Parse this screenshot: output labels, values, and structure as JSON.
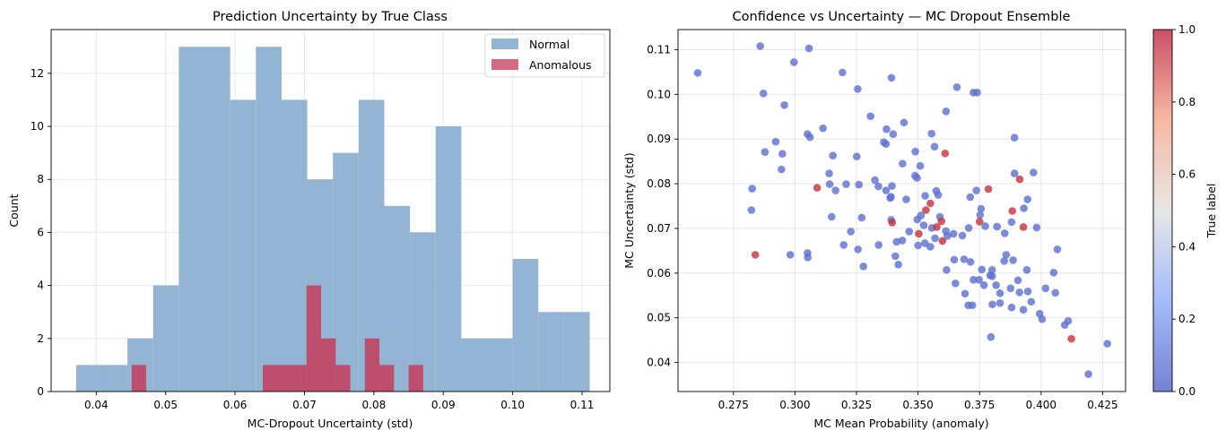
{
  "left_chart": {
    "title": "Prediction Uncertainty by True Class",
    "xlabel": "MC-Dropout Uncertainty (std)",
    "ylabel": "Count",
    "xticks": [
      "0.04",
      "0.05",
      "0.06",
      "0.07",
      "0.08",
      "0.09",
      "0.10",
      "0.11"
    ],
    "yticks": [
      "0",
      "2",
      "4",
      "6",
      "8",
      "10",
      "12"
    ],
    "legend": [
      "Normal",
      "Anomalous"
    ]
  },
  "right_chart": {
    "title": "Confidence vs Uncertainty — MC Dropout Ensemble",
    "xlabel": "MC Mean Probability (anomaly)",
    "ylabel": "MC Uncertainty (std)",
    "xticks": [
      "0.275",
      "0.300",
      "0.325",
      "0.350",
      "0.375",
      "0.400",
      "0.425"
    ],
    "yticks": [
      "0.04",
      "0.05",
      "0.06",
      "0.07",
      "0.08",
      "0.09",
      "0.10",
      "0.11"
    ],
    "colorbar_label": "True label",
    "colorbar_ticks": [
      "0.0",
      "0.2",
      "0.4",
      "0.6",
      "0.8",
      "1.0"
    ]
  },
  "colors": {
    "normal": "#93b4d2",
    "anomalous": "#c43c5c",
    "point_low": "#5b6fd0",
    "point_high": "#c4323f"
  },
  "chart_data": [
    {
      "type": "bar",
      "subtype": "histogram",
      "title": "Prediction Uncertainty by True Class",
      "xlabel": "MC-Dropout Uncertainty (std)",
      "ylabel": "Count",
      "xlim": [
        0.0335,
        0.114
      ],
      "ylim": [
        0,
        13.65
      ],
      "grid": true,
      "legend_position": "upper right",
      "series": [
        {
          "name": "Normal",
          "bin_edges": [
            0.0371,
            0.0408,
            0.0445,
            0.0482,
            0.0519,
            0.0556,
            0.0593,
            0.063,
            0.0667,
            0.0704,
            0.0741,
            0.0778,
            0.0815,
            0.0852,
            0.0889,
            0.0926,
            0.0963,
            0.1,
            0.1037,
            0.1074,
            0.1111
          ],
          "counts": [
            1,
            1,
            2,
            4,
            13,
            13,
            11,
            13,
            11,
            8,
            9,
            11,
            7,
            6,
            10,
            2,
            2,
            5,
            3,
            3
          ]
        },
        {
          "name": "Anomalous",
          "bin_edges": [
            0.0451,
            0.0472,
            0.0493,
            0.0514,
            0.0535,
            0.0556,
            0.0577,
            0.0598,
            0.0619,
            0.064,
            0.0661,
            0.0682,
            0.0703,
            0.0724,
            0.0745,
            0.0766,
            0.0787,
            0.0808,
            0.0829,
            0.085,
            0.0871
          ],
          "counts": [
            1,
            0,
            0,
            0,
            0,
            0,
            0,
            0,
            0,
            1,
            1,
            1,
            4,
            2,
            1,
            0,
            2,
            1,
            0,
            1
          ]
        }
      ]
    },
    {
      "type": "scatter",
      "title": "Confidence vs Uncertainty — MC Dropout Ensemble",
      "xlabel": "MC Mean Probability (anomaly)",
      "ylabel": "MC Uncertainty (std)",
      "xlim": [
        0.2525,
        0.4343
      ],
      "ylim": [
        0.0335,
        0.1145
      ],
      "grid": true,
      "colorbar": {
        "label": "True label",
        "range": [
          0,
          1
        ],
        "colormap": "coolwarm"
      },
      "series": [
        {
          "name": "0",
          "points": [
            [
              0.2605,
              0.1048
            ],
            [
              0.2859,
              0.1108
            ],
            [
              0.3057,
              0.1103
            ],
            [
              0.2996,
              0.1072
            ],
            [
              0.3193,
              0.1049
            ],
            [
              0.3392,
              0.1037
            ],
            [
              0.3658,
              0.1016
            ],
            [
              0.3725,
              0.1004
            ],
            [
              0.374,
              0.1004
            ],
            [
              0.2872,
              0.1002
            ],
            [
              0.3255,
              0.1012
            ],
            [
              0.2957,
              0.0976
            ],
            [
              0.3614,
              0.0962
            ],
            [
              0.3307,
              0.0951
            ],
            [
              0.3443,
              0.0937
            ],
            [
              0.3114,
              0.0924
            ],
            [
              0.3372,
              0.0922
            ],
            [
              0.3399,
              0.0911
            ],
            [
              0.3555,
              0.0912
            ],
            [
              0.3051,
              0.0911
            ],
            [
              0.3061,
              0.0904
            ],
            [
              0.2922,
              0.0894
            ],
            [
              0.3361,
              0.0893
            ],
            [
              0.337,
              0.0889
            ],
            [
              0.3567,
              0.0883
            ],
            [
              0.3892,
              0.0903
            ],
            [
              0.2878,
              0.0871
            ],
            [
              0.2949,
              0.0867
            ],
            [
              0.3251,
              0.0861
            ],
            [
              0.3154,
              0.0863
            ],
            [
              0.3489,
              0.0872
            ],
            [
              0.3437,
              0.0845
            ],
            [
              0.3509,
              0.084
            ],
            [
              0.2945,
              0.0832
            ],
            [
              0.3139,
              0.0823
            ],
            [
              0.3488,
              0.0818
            ],
            [
              0.3496,
              0.0813
            ],
            [
              0.3325,
              0.0808
            ],
            [
              0.3339,
              0.0794
            ],
            [
              0.3165,
              0.0785
            ],
            [
              0.3208,
              0.0799
            ],
            [
              0.3141,
              0.0799
            ],
            [
              0.326,
              0.0798
            ],
            [
              0.3394,
              0.0795
            ],
            [
              0.339,
              0.0771
            ],
            [
              0.3387,
              0.0768
            ],
            [
              0.3452,
              0.0765
            ],
            [
              0.3529,
              0.0773
            ],
            [
              0.337,
              0.0785
            ],
            [
              0.3574,
              0.0784
            ],
            [
              0.3582,
              0.0775
            ],
            [
              0.3737,
              0.0785
            ],
            [
              0.3712,
              0.077
            ],
            [
              0.3756,
              0.0744
            ],
            [
              0.3892,
              0.0823
            ],
            [
              0.3969,
              0.0825
            ],
            [
              0.3945,
              0.0765
            ],
            [
              0.393,
              0.0745
            ],
            [
              0.2826,
              0.0789
            ],
            [
              0.2823,
              0.0741
            ],
            [
              0.3149,
              0.0726
            ],
            [
              0.3271,
              0.0724
            ],
            [
              0.3391,
              0.0719
            ],
            [
              0.3497,
              0.072
            ],
            [
              0.3512,
              0.0729
            ],
            [
              0.3589,
              0.0726
            ],
            [
              0.3556,
              0.0701
            ],
            [
              0.3523,
              0.0707
            ],
            [
              0.3613,
              0.0694
            ],
            [
              0.3644,
              0.0688
            ],
            [
              0.3619,
              0.0683
            ],
            [
              0.3706,
              0.0701
            ],
            [
              0.3773,
              0.0705
            ],
            [
              0.3752,
              0.073
            ],
            [
              0.3821,
              0.0704
            ],
            [
              0.3852,
              0.0689
            ],
            [
              0.388,
              0.0714
            ],
            [
              0.3982,
              0.0702
            ],
            [
              0.3413,
              0.067
            ],
            [
              0.3436,
              0.0673
            ],
            [
              0.3464,
              0.0693
            ],
            [
              0.35,
              0.0662
            ],
            [
              0.3528,
              0.0667
            ],
            [
              0.355,
              0.0659
            ],
            [
              0.3569,
              0.0678
            ],
            [
              0.368,
              0.0684
            ],
            [
              0.3227,
              0.0693
            ],
            [
              0.3198,
              0.0663
            ],
            [
              0.3256,
              0.0653
            ],
            [
              0.3051,
              0.0645
            ],
            [
              0.3052,
              0.0635
            ],
            [
              0.2981,
              0.0641
            ],
            [
              0.3278,
              0.0615
            ],
            [
              0.334,
              0.0663
            ],
            [
              0.3408,
              0.0638
            ],
            [
              0.342,
              0.0619
            ],
            [
              0.3647,
              0.063
            ],
            [
              0.3687,
              0.0631
            ],
            [
              0.3713,
              0.0625
            ],
            [
              0.3616,
              0.0607
            ],
            [
              0.3652,
              0.0577
            ],
            [
              0.3691,
              0.0554
            ],
            [
              0.3704,
              0.0528
            ],
            [
              0.3721,
              0.0528
            ],
            [
              0.3725,
              0.0585
            ],
            [
              0.3748,
              0.0585
            ],
            [
              0.3759,
              0.0608
            ],
            [
              0.3768,
              0.0573
            ],
            [
              0.3801,
              0.0607
            ],
            [
              0.3793,
              0.0595
            ],
            [
              0.3817,
              0.0573
            ],
            [
              0.3801,
              0.0593
            ],
            [
              0.3833,
              0.0555
            ],
            [
              0.3833,
              0.0533
            ],
            [
              0.3802,
              0.053
            ],
            [
              0.385,
              0.0627
            ],
            [
              0.3858,
              0.0641
            ],
            [
              0.3886,
              0.0629
            ],
            [
              0.3906,
              0.0584
            ],
            [
              0.3876,
              0.0566
            ],
            [
              0.388,
              0.0523
            ],
            [
              0.3912,
              0.0557
            ],
            [
              0.3928,
              0.0518
            ],
            [
              0.3946,
              0.0559
            ],
            [
              0.3942,
              0.0607
            ],
            [
              0.396,
              0.0536
            ],
            [
              0.3994,
              0.0509
            ],
            [
              0.4004,
              0.0497
            ],
            [
              0.4018,
              0.0566
            ],
            [
              0.4051,
              0.0601
            ],
            [
              0.4058,
              0.0556
            ],
            [
              0.4066,
              0.0653
            ],
            [
              0.4096,
              0.0484
            ],
            [
              0.411,
              0.0493
            ],
            [
              0.4269,
              0.0442
            ],
            [
              0.4192,
              0.0374
            ],
            [
              0.3796,
              0.0457
            ]
          ]
        },
        {
          "name": "1",
          "points": [
            [
              0.2839,
              0.0641
            ],
            [
              0.309,
              0.0791
            ],
            [
              0.3395,
              0.0713
            ],
            [
              0.3503,
              0.0688
            ],
            [
              0.3532,
              0.0741
            ],
            [
              0.355,
              0.0756
            ],
            [
              0.3576,
              0.0703
            ],
            [
              0.3595,
              0.0716
            ],
            [
              0.3599,
              0.0672
            ],
            [
              0.361,
              0.0868
            ],
            [
              0.375,
              0.0715
            ],
            [
              0.3786,
              0.0788
            ],
            [
              0.3883,
              0.0739
            ],
            [
              0.3913,
              0.081
            ],
            [
              0.3928,
              0.0703
            ],
            [
              0.4123,
              0.0453
            ]
          ]
        }
      ]
    }
  ]
}
